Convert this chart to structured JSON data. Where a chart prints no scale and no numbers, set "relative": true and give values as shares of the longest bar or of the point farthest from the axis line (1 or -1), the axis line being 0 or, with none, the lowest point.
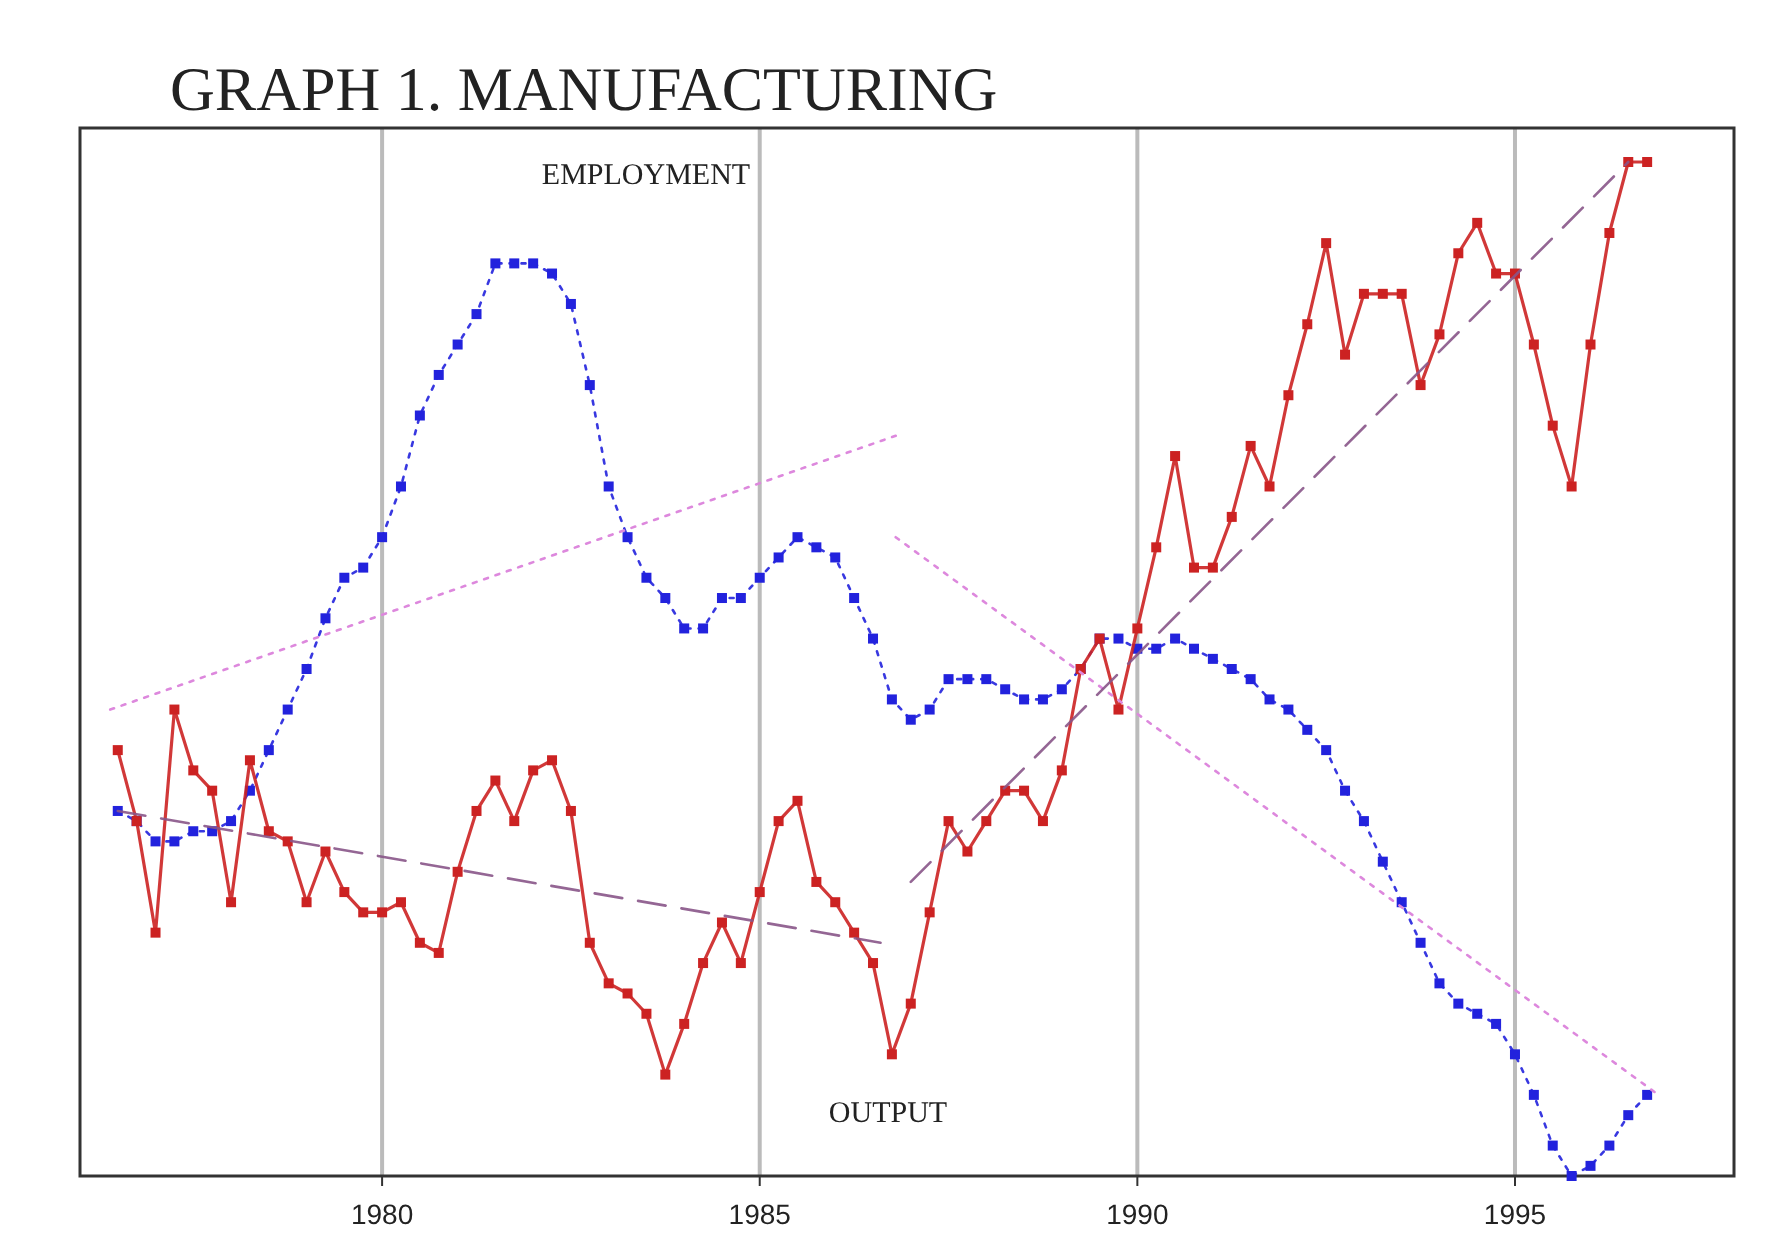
{
  "chart_data": {
    "type": "line",
    "title": "GRAPH 1. MANUFACTURING",
    "relative": true,
    "xlim": [
      1976,
      1997.9
    ],
    "xticks": [
      1980,
      1985,
      1990,
      1995
    ],
    "grid": "x",
    "legend": false,
    "tick_labels": "x",
    "marker": "square",
    "x": [
      1976.5,
      1976.75,
      1977,
      1977.25,
      1977.5,
      1977.75,
      1978,
      1978.25,
      1978.5,
      1978.75,
      1979,
      1979.25,
      1979.5,
      1979.75,
      1980,
      1980.25,
      1980.5,
      1980.75,
      1981,
      1981.25,
      1981.5,
      1981.75,
      1982,
      1982.25,
      1982.5,
      1982.75,
      1983,
      1983.25,
      1983.5,
      1983.75,
      1984,
      1984.25,
      1984.5,
      1984.75,
      1985,
      1985.25,
      1985.5,
      1985.75,
      1986,
      1986.25,
      1986.5,
      1986.75,
      1987,
      1987.25,
      1987.5,
      1987.75,
      1988,
      1988.25,
      1988.5,
      1988.75,
      1989,
      1989.25,
      1989.5,
      1989.75,
      1990,
      1990.25,
      1990.5,
      1990.75,
      1991,
      1991.25,
      1991.5,
      1991.75,
      1992,
      1992.25,
      1992.5,
      1992.75,
      1993,
      1993.25,
      1993.5,
      1993.75,
      1994,
      1994.25,
      1994.5,
      1994.75,
      1995,
      1995.25,
      1995.5,
      1995.75,
      1996,
      1996.25,
      1996.5,
      1996.75
    ],
    "series": [
      {
        "name": "EMPLOYMENT",
        "color": "#2222dd",
        "line_style": "dotted",
        "values": [
          0.36,
          0.35,
          0.33,
          0.33,
          0.34,
          0.34,
          0.35,
          0.38,
          0.42,
          0.46,
          0.5,
          0.55,
          0.59,
          0.6,
          0.63,
          0.68,
          0.75,
          0.79,
          0.82,
          0.85,
          0.9,
          0.9,
          0.9,
          0.89,
          0.86,
          0.78,
          0.68,
          0.63,
          0.59,
          0.57,
          0.54,
          0.54,
          0.57,
          0.57,
          0.59,
          0.61,
          0.63,
          0.62,
          0.61,
          0.57,
          0.53,
          0.47,
          0.45,
          0.46,
          0.49,
          0.49,
          0.49,
          0.48,
          0.47,
          0.47,
          0.48,
          0.5,
          0.53,
          0.53,
          0.52,
          0.52,
          0.53,
          0.52,
          0.51,
          0.5,
          0.49,
          0.47,
          0.46,
          0.44,
          0.42,
          0.38,
          0.35,
          0.31,
          0.27,
          0.23,
          0.19,
          0.17,
          0.16,
          0.15,
          0.12,
          0.08,
          0.03,
          0,
          0.01,
          0.03,
          0.06,
          0.08
        ]
      },
      {
        "name": "OUTPUT",
        "color": "#cc2222",
        "line_style": "solid",
        "values": [
          0.42,
          0.35,
          0.24,
          0.46,
          0.4,
          0.38,
          0.27,
          0.41,
          0.34,
          0.33,
          0.27,
          0.32,
          0.28,
          0.26,
          0.26,
          0.27,
          0.23,
          0.22,
          0.3,
          0.36,
          0.39,
          0.35,
          0.4,
          0.41,
          0.36,
          0.23,
          0.19,
          0.18,
          0.16,
          0.1,
          0.15,
          0.21,
          0.25,
          0.21,
          0.28,
          0.35,
          0.37,
          0.29,
          0.27,
          0.24,
          0.21,
          0.12,
          0.17,
          0.26,
          0.35,
          0.32,
          0.35,
          0.38,
          0.38,
          0.35,
          0.4,
          0.5,
          0.53,
          0.46,
          0.54,
          0.62,
          0.71,
          0.6,
          0.6,
          0.65,
          0.72,
          0.68,
          0.77,
          0.84,
          0.92,
          0.81,
          0.87,
          0.87,
          0.87,
          0.78,
          0.83,
          0.91,
          0.94,
          0.89,
          0.89,
          0.82,
          0.74,
          0.68,
          0.82,
          0.93,
          1,
          1
        ]
      },
      {
        "color": "#dd88dd",
        "line_style": "dotted",
        "marker": "none",
        "x": [
          1976.4,
          1986.8
        ],
        "values": [
          0.46,
          0.73
        ]
      },
      {
        "color": "#dd88dd",
        "line_style": "dotted",
        "marker": "none",
        "x": [
          1986.8,
          1996.9
        ],
        "values": [
          0.63,
          0.08
        ]
      },
      {
        "color": "#885588",
        "line_style": "dashed",
        "marker": "none",
        "x": [
          1976.5,
          1986.6
        ],
        "values": [
          0.36,
          0.23
        ]
      },
      {
        "color": "#885588",
        "line_style": "dashed",
        "marker": "none",
        "x": [
          1987,
          1996.5
        ],
        "values": [
          0.29,
          1
        ]
      }
    ]
  }
}
